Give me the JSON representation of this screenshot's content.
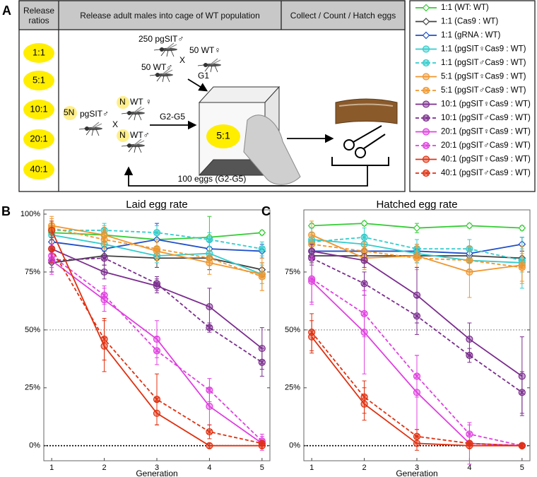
{
  "diagram": {
    "panel_label": "A",
    "headers": [
      "Release ratios",
      "Release adult males into cage of WT population",
      "Collect / Count / Hatch eggs"
    ],
    "ratios": [
      "1:1",
      "5:1",
      "10:1",
      "20:1",
      "40:1"
    ],
    "top_group": [
      "250 pgSIT♂",
      "50 WT♂",
      "X",
      "50 WT♀",
      "G1"
    ],
    "left_group": [
      "5N",
      "pgSIT♂",
      "X",
      "N",
      "WT ♀",
      "N",
      "WT♂"
    ],
    "arrow_label": "G2-G5",
    "cage_ratio": "5:1",
    "loop_label": "100 eggs (G2-G5)"
  },
  "chart_data": [
    {
      "type": "line",
      "panel_label": "B",
      "title": "Laid egg rate",
      "x_label": "Generation",
      "x": [
        1,
        2,
        3,
        4,
        5
      ],
      "xlim": [
        0.85,
        5.15
      ],
      "xticks": [
        1,
        2,
        3,
        4,
        5
      ],
      "ylim": [
        -6.5,
        100
      ],
      "yticks": [
        {
          "value": 0,
          "label": "0%"
        },
        {
          "value": 25,
          "label": "25%"
        },
        {
          "value": 50,
          "label": "50%"
        },
        {
          "value": 75,
          "label": "75%"
        },
        {
          "value": 100,
          "label": "100%"
        }
      ],
      "hlines": [
        {
          "value": 50,
          "color": "#888888"
        },
        {
          "value": 0,
          "color": "#000000"
        }
      ],
      "series": [
        {
          "name": "1:1 (WT: WT)",
          "color": "#33cc33",
          "dash": false,
          "marker": "diamond",
          "values": [
            92,
            91,
            89,
            90,
            92
          ],
          "errors": [
            4,
            3,
            3,
            9,
            1
          ]
        },
        {
          "name": "1:1 (Cas9 : WT)",
          "color": "#404040",
          "dash": false,
          "marker": "diamond",
          "values": [
            79,
            82,
            81,
            81,
            76
          ],
          "errors": [
            4,
            4,
            4,
            5,
            3
          ]
        },
        {
          "name": "1:1 (gRNA : WT)",
          "color": "#1f4fc8",
          "dash": false,
          "marker": "diamond",
          "values": [
            88,
            85,
            89,
            85,
            84
          ],
          "errors": [
            4,
            3,
            7,
            3,
            3
          ]
        },
        {
          "name": "1:1 (pgSIT♀Cas9 : WT)",
          "color": "#33cccc",
          "dash": false,
          "marker": "circle",
          "values": [
            91,
            87,
            82,
            83,
            74
          ],
          "errors": [
            6,
            3,
            3,
            3,
            4
          ]
        },
        {
          "name": "1:1 (pgSIT♂Cas9 : WT)",
          "color": "#33cccc",
          "dash": true,
          "marker": "circle-x",
          "values": [
            93,
            93,
            92,
            89,
            85
          ],
          "errors": [
            3,
            3,
            3,
            3,
            3
          ]
        },
        {
          "name": "5:1 (pgSIT♀Cas9 : WT)",
          "color": "#f0962e",
          "dash": false,
          "marker": "circle",
          "values": [
            95,
            91,
            84,
            79,
            74
          ],
          "errors": [
            4,
            4,
            4,
            5,
            7
          ]
        },
        {
          "name": "5:1 (pgSIT♂Cas9 : WT)",
          "color": "#f0962e",
          "dash": true,
          "marker": "circle-x",
          "values": [
            94,
            89,
            85,
            81,
            73
          ],
          "errors": [
            4,
            4,
            4,
            3,
            6
          ]
        },
        {
          "name": "10:1 (pgSIT♀Cas9 : WT)",
          "color": "#7b2d8e",
          "dash": false,
          "marker": "circle",
          "values": [
            85,
            75,
            69,
            60,
            42
          ],
          "errors": [
            5,
            3,
            3,
            8,
            9
          ]
        },
        {
          "name": "10:1 (pgSIT♂Cas9 : WT)",
          "color": "#7b2d8e",
          "dash": true,
          "marker": "circle-x",
          "values": [
            80,
            81,
            70,
            51,
            36
          ],
          "errors": [
            5,
            3,
            3,
            2,
            6
          ]
        },
        {
          "name": "20:1 (pgSIT♀Cas9 : WT)",
          "color": "#e040e0",
          "dash": false,
          "marker": "circle",
          "values": [
            80,
            63,
            46,
            17,
            1
          ],
          "errors": [
            6,
            5,
            8,
            8,
            3
          ]
        },
        {
          "name": "20:1 (pgSIT♂Cas9 : WT)",
          "color": "#e040e0",
          "dash": true,
          "marker": "circle-x",
          "values": [
            82,
            65,
            41,
            24,
            2
          ],
          "errors": [
            5,
            4,
            6,
            5,
            3
          ]
        },
        {
          "name": "40:1 (pgSIT♀Cas9 : WT)",
          "color": "#e03010",
          "dash": false,
          "marker": "circle",
          "values": [
            93,
            43,
            14,
            0,
            0
          ],
          "errors": [
            4,
            11,
            5,
            1,
            1
          ]
        },
        {
          "name": "40:1 (pgSIT♂Cas9 : WT)",
          "color": "#e03010",
          "dash": true,
          "marker": "circle-x",
          "values": [
            85,
            46,
            20,
            6,
            1
          ],
          "errors": [
            6,
            9,
            11,
            3,
            1
          ]
        }
      ]
    },
    {
      "type": "line",
      "panel_label": "C",
      "title": "Hatched egg rate",
      "x_label": "Generation",
      "x": [
        1,
        2,
        3,
        4,
        5
      ],
      "xlim": [
        0.85,
        5.15
      ],
      "xticks": [
        1,
        2,
        3,
        4,
        5
      ],
      "ylim": [
        -6.5,
        100
      ],
      "yticks": [
        {
          "value": 0,
          "label": "0%"
        },
        {
          "value": 25,
          "label": "25%"
        },
        {
          "value": 50,
          "label": "50%"
        },
        {
          "value": 75,
          "label": "75%"
        }
      ],
      "hlines": [
        {
          "value": 50,
          "color": "#888888"
        },
        {
          "value": 0,
          "color": "#000000"
        }
      ],
      "series": [
        {
          "color": "#33cc33",
          "dash": false,
          "marker": "diamond",
          "values": [
            95,
            96,
            94,
            95,
            94
          ],
          "errors": [
            1,
            1,
            2,
            1,
            1
          ]
        },
        {
          "color": "#404040",
          "dash": false,
          "marker": "diamond",
          "values": [
            82,
            82,
            82,
            82,
            81
          ],
          "errors": [
            3,
            3,
            3,
            3,
            3
          ]
        },
        {
          "color": "#1f4fc8",
          "dash": false,
          "marker": "diamond",
          "values": [
            84,
            84,
            84,
            83,
            87
          ],
          "errors": [
            3,
            3,
            3,
            3,
            3
          ]
        },
        {
          "color": "#33cccc",
          "dash": false,
          "marker": "circle",
          "values": [
            89,
            87,
            83,
            80,
            79
          ],
          "errors": [
            5,
            4,
            4,
            4,
            11
          ]
        },
        {
          "color": "#33cccc",
          "dash": true,
          "marker": "circle-x",
          "values": [
            88,
            90,
            85,
            85,
            80
          ],
          "errors": [
            4,
            4,
            4,
            4,
            5
          ]
        },
        {
          "color": "#f0962e",
          "dash": false,
          "marker": "circle",
          "values": [
            91,
            81,
            82,
            75,
            78
          ],
          "errors": [
            6,
            5,
            5,
            11,
            8
          ]
        },
        {
          "color": "#f0962e",
          "dash": true,
          "marker": "circle-x",
          "values": [
            87,
            84,
            81,
            80,
            77
          ],
          "errors": [
            4,
            4,
            5,
            4,
            6
          ]
        },
        {
          "color": "#7b2d8e",
          "dash": false,
          "marker": "circle",
          "values": [
            84,
            80,
            65,
            46,
            30
          ],
          "errors": [
            3,
            3,
            12,
            7,
            17
          ]
        },
        {
          "color": "#7b2d8e",
          "dash": true,
          "marker": "circle-x",
          "values": [
            81,
            70,
            56,
            39,
            23
          ],
          "errors": [
            3,
            5,
            8,
            3,
            9
          ]
        },
        {
          "color": "#e040e0",
          "dash": false,
          "marker": "circle",
          "values": [
            71,
            49,
            23,
            1,
            0
          ],
          "errors": [
            10,
            18,
            16,
            9,
            1
          ]
        },
        {
          "color": "#e040e0",
          "dash": true,
          "marker": "circle-x",
          "values": [
            72,
            57,
            30,
            5,
            0
          ],
          "errors": [
            10,
            10,
            9,
            4,
            1
          ]
        },
        {
          "color": "#e03010",
          "dash": false,
          "marker": "circle",
          "values": [
            47,
            18,
            1,
            0,
            0
          ],
          "errors": [
            7,
            7,
            3,
            1,
            1
          ]
        },
        {
          "color": "#e03010",
          "dash": true,
          "marker": "circle-x",
          "values": [
            49,
            21,
            4,
            1,
            0
          ],
          "errors": [
            8,
            7,
            3,
            1,
            1
          ]
        }
      ]
    }
  ]
}
